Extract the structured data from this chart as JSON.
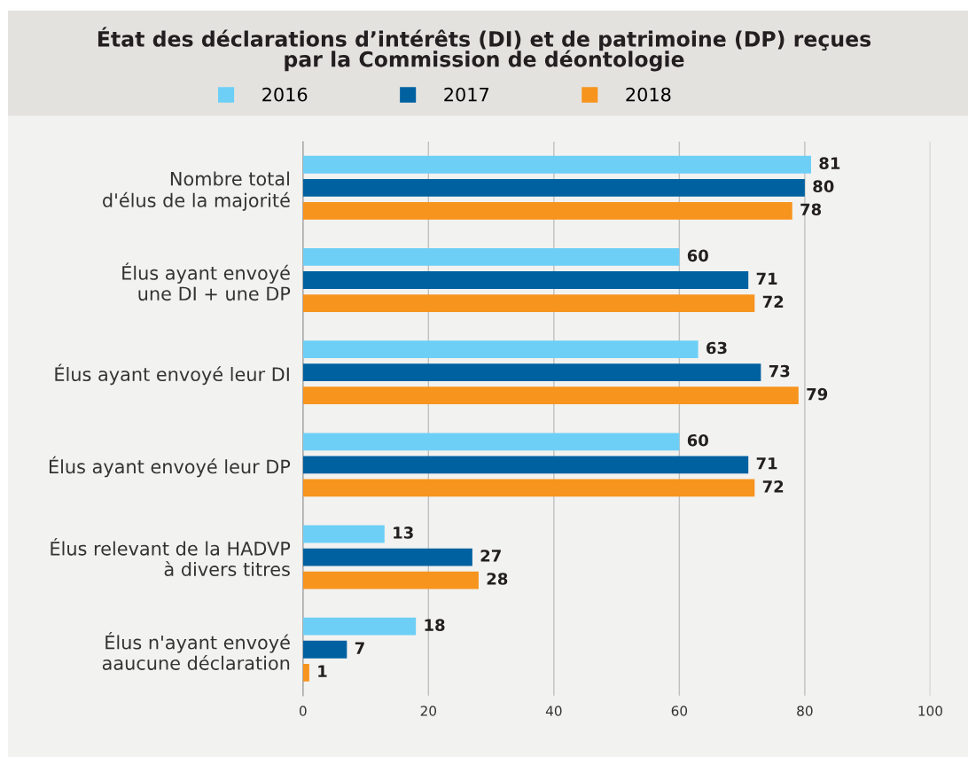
{
  "chart_data": {
    "type": "bar",
    "orientation": "horizontal",
    "title": "État des déclarations d’intérêts (DI) et de patrimoine (DP) reçues\npar la Commission de déontologie",
    "categories": [
      "Nombre total\nd'élus de la majorité",
      "Élus ayant envoyé\nune DI + une DP",
      "Élus ayant envoyé leur DI",
      "Élus ayant envoyé leur DP",
      "Élus relevant de la HADVP\nà divers titres",
      "Élus n'ayant envoyé\naaucune déclaration"
    ],
    "series": [
      {
        "name": "2016",
        "color": "#6dcff6",
        "values": [
          81,
          60,
          63,
          60,
          13,
          18
        ]
      },
      {
        "name": "2017",
        "color": "#0061a1",
        "values": [
          80,
          71,
          73,
          71,
          27,
          7
        ]
      },
      {
        "name": "2018",
        "color": "#f7941d",
        "values": [
          78,
          72,
          79,
          72,
          28,
          1
        ]
      }
    ],
    "xlim": [
      0,
      100
    ],
    "xticks": [
      0,
      20,
      40,
      60,
      80,
      100
    ],
    "grid": "x",
    "legend": "top",
    "data_labels": true
  }
}
